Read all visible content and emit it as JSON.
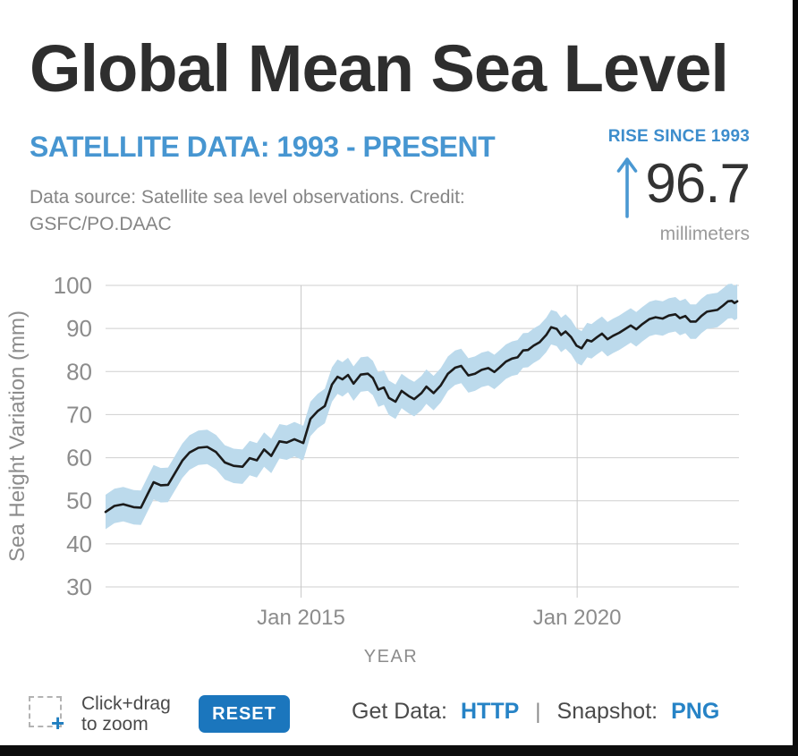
{
  "header": {
    "title": "Global Mean Sea Level",
    "subtitle": "SATELLITE DATA: 1993 - PRESENT",
    "source_line1": "Data source: Satellite sea level observations. Credit:",
    "source_line2": "GSFC/PO.DAAC"
  },
  "stat": {
    "label": "RISE SINCE 1993",
    "value": "96.7",
    "units": "millimeters",
    "arrow_icon": "up-arrow"
  },
  "footer": {
    "zoom_hint_line1": "Click+drag",
    "zoom_hint_line2": "to zoom",
    "zoom_plus": "+",
    "reset_label": "RESET",
    "get_data_label": "Get Data:",
    "get_data_link": "HTTP",
    "separator": "|",
    "snapshot_label": "Snapshot:",
    "snapshot_link": "PNG"
  },
  "colors": {
    "accent_blue": "#4796d1",
    "stat_blue": "#3d8dcc",
    "link_blue": "#2683c6",
    "button_blue": "#1b76bd",
    "title_gray": "#2e2e2e",
    "text_gray": "#858585",
    "axis_gray": "#8c8c8c",
    "grid_gray": "#cfcfcf",
    "band_blue": "#bcdaec",
    "line_black": "#1b1b1b"
  },
  "chart_data": {
    "type": "line",
    "title": "",
    "xlabel": "YEAR",
    "ylabel": "Sea Height Variation (mm)",
    "xlim": [
      2011.46,
      2022.93
    ],
    "ylim": [
      30,
      100
    ],
    "grid": true,
    "legend": "none",
    "uncertainty_mm": 4,
    "yticks": [
      30,
      40,
      50,
      60,
      70,
      80,
      90,
      100
    ],
    "xticks": [
      {
        "year": 2015.0,
        "label": "Jan 2015"
      },
      {
        "year": 2020.0,
        "label": "Jan 2020"
      }
    ],
    "series": [
      {
        "name": "Global Mean Sea Level (satellite altimetry)",
        "x": [
          2011.46,
          2011.62,
          2011.78,
          2011.97,
          2012.1,
          2012.22,
          2012.33,
          2012.46,
          2012.59,
          2012.72,
          2012.85,
          2012.98,
          2013.14,
          2013.3,
          2013.46,
          2013.62,
          2013.78,
          2013.94,
          2014.07,
          2014.2,
          2014.33,
          2014.46,
          2014.61,
          2014.74,
          2014.88,
          2015.04,
          2015.17,
          2015.3,
          2015.43,
          2015.56,
          2015.66,
          2015.75,
          2015.85,
          2015.95,
          2016.08,
          2016.21,
          2016.3,
          2016.4,
          2016.5,
          2016.59,
          2016.71,
          2016.82,
          2016.95,
          2017.05,
          2017.18,
          2017.27,
          2017.4,
          2017.53,
          2017.66,
          2017.79,
          2017.9,
          2018.03,
          2018.15,
          2018.27,
          2018.39,
          2018.5,
          2018.6,
          2018.71,
          2018.82,
          2018.92,
          2019.02,
          2019.11,
          2019.21,
          2019.32,
          2019.44,
          2019.53,
          2019.63,
          2019.71,
          2019.79,
          2019.89,
          2019.99,
          2020.08,
          2020.18,
          2020.26,
          2020.36,
          2020.45,
          2020.55,
          2020.65,
          2020.76,
          2020.86,
          2020.97,
          2021.07,
          2021.18,
          2021.31,
          2021.42,
          2021.55,
          2021.66,
          2021.78,
          2021.86,
          2021.96,
          2022.05,
          2022.15,
          2022.25,
          2022.35,
          2022.44,
          2022.54,
          2022.64,
          2022.73,
          2022.8,
          2022.85,
          2022.9
        ],
        "y": [
          47.4,
          48.8,
          49.2,
          48.5,
          48.4,
          51.5,
          54.3,
          53.6,
          53.7,
          56.5,
          59.3,
          61.2,
          62.3,
          62.5,
          61.3,
          58.9,
          58.1,
          57.9,
          59.9,
          59.4,
          61.9,
          60.4,
          63.8,
          63.5,
          64.3,
          63.4,
          69.0,
          70.8,
          72.0,
          77.0,
          78.8,
          78.2,
          79.2,
          77.2,
          79.3,
          79.5,
          78.5,
          75.8,
          76.3,
          73.9,
          73.0,
          75.5,
          74.3,
          73.6,
          75.0,
          76.5,
          75.0,
          76.8,
          79.5,
          80.9,
          81.3,
          79.1,
          79.5,
          80.4,
          80.8,
          79.9,
          81.0,
          82.3,
          83.0,
          83.3,
          84.9,
          85.0,
          86.0,
          86.8,
          88.5,
          90.3,
          89.9,
          88.5,
          89.3,
          88.0,
          86.0,
          85.4,
          87.3,
          87.0,
          88.0,
          88.8,
          87.5,
          88.3,
          89.0,
          89.8,
          90.7,
          89.8,
          91.0,
          92.2,
          92.6,
          92.3,
          93.0,
          93.3,
          92.4,
          92.9,
          91.6,
          91.6,
          92.9,
          93.9,
          94.1,
          94.3,
          95.3,
          96.3,
          96.4,
          95.9,
          96.3
        ]
      }
    ]
  }
}
